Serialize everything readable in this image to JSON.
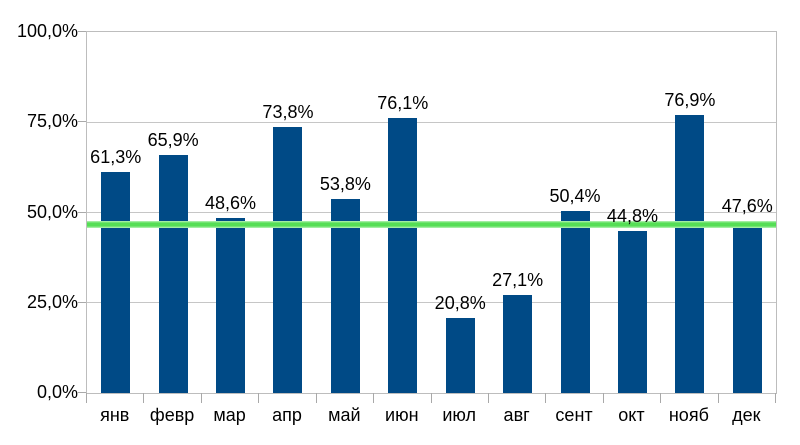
{
  "window": {
    "background": "#ffffff"
  },
  "colors": {
    "bar_fill": "#004a86",
    "threshold_core": "#55de55",
    "threshold_halo": "#b9f2b9",
    "gridline": "#c6c6c6",
    "axis": "#a9a9a9",
    "text": "#000000"
  },
  "chart_data": {
    "type": "bar",
    "title": "",
    "xlabel": "",
    "ylabel": "",
    "categories": [
      "янв",
      "февр",
      "мар",
      "апр",
      "май",
      "июн",
      "июл",
      "авг",
      "сент",
      "окт",
      "нояб",
      "дек"
    ],
    "values": [
      61.3,
      65.9,
      48.6,
      73.8,
      53.8,
      76.1,
      20.8,
      27.1,
      50.4,
      44.8,
      76.9,
      47.6
    ],
    "data_labels": [
      "61,3%",
      "65,9%",
      "48,6%",
      "73,8%",
      "53,8%",
      "76,1%",
      "20,8%",
      "27,1%",
      "50,4%",
      "44,8%",
      "76,9%",
      "47,6%"
    ],
    "series_color": "#004a86",
    "y_tick_labels": [
      "0,0%",
      "25,0%",
      "50,0%",
      "75,0%",
      "100,0%"
    ],
    "y_tick_values": [
      0,
      25,
      50,
      75,
      100
    ],
    "ylim": [
      0,
      100
    ],
    "grid": true,
    "legend": false,
    "threshold_line": {
      "value": 46.8,
      "color": "#55de55"
    }
  }
}
